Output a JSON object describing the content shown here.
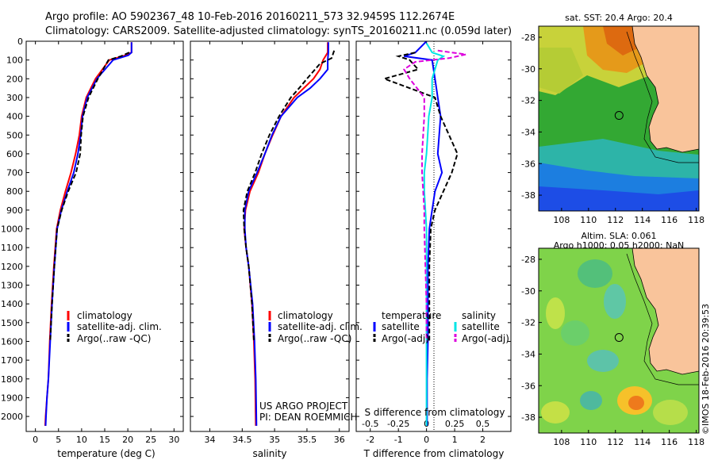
{
  "header": {
    "title_line1": "Argo profile: AO 5902367_48 10-Feb-2016 20160211_573 32.9459S 112.2674E",
    "title_line2": "Climatology: CARS2009. Satellite-adjusted climatology: synTS_20160211.nc (0.059d later)"
  },
  "colors": {
    "climatology": "#ff0000",
    "satellite": "#0000ff",
    "argo": "#000000",
    "sal_satellite": "#00e5e5",
    "sal_argo": "#dd00dd"
  },
  "chart_data": [
    {
      "type": "line",
      "name": "temperature-panel",
      "xlabel": "temperature (deg C)",
      "ylabel": "",
      "xlim": [
        -2,
        32
      ],
      "ylim": [
        2080,
        0
      ],
      "xticks": [
        0,
        5,
        10,
        15,
        20,
        25,
        30
      ],
      "yticks": [
        0,
        100,
        200,
        300,
        400,
        500,
        600,
        700,
        800,
        900,
        1000,
        1100,
        1200,
        1300,
        1400,
        1500,
        1600,
        1700,
        1800,
        1900,
        2000
      ],
      "legend": [
        "climatology",
        "satellite-adj. clim.",
        "Argo(..raw -QC)"
      ],
      "series": [
        {
          "name": "climatology",
          "dash": "solid",
          "points": [
            [
              20.8,
              5
            ],
            [
              20.8,
              60
            ],
            [
              19.5,
              75
            ],
            [
              16,
              100
            ],
            [
              13,
              200
            ],
            [
              11,
              300
            ],
            [
              10,
              400
            ],
            [
              9.5,
              500
            ],
            [
              8.7,
              600
            ],
            [
              7.7,
              700
            ],
            [
              6.5,
              800
            ],
            [
              5.4,
              900
            ],
            [
              4.6,
              1000
            ],
            [
              4.0,
              1200
            ],
            [
              3.5,
              1400
            ],
            [
              3.1,
              1600
            ],
            [
              2.8,
              1800
            ],
            [
              2.5,
              1900
            ],
            [
              2.2,
              2000
            ],
            [
              2.1,
              2050
            ]
          ]
        },
        {
          "name": "satellite-adj. clim.",
          "dash": "solid",
          "points": [
            [
              20.8,
              5
            ],
            [
              20.8,
              60
            ],
            [
              20.1,
              75
            ],
            [
              16.8,
              100
            ],
            [
              13.3,
              200
            ],
            [
              11.2,
              300
            ],
            [
              10.2,
              400
            ],
            [
              9.8,
              500
            ],
            [
              9.2,
              600
            ],
            [
              8.3,
              700
            ],
            [
              6.9,
              800
            ],
            [
              5.6,
              900
            ],
            [
              4.7,
              1000
            ],
            [
              4.1,
              1200
            ],
            [
              3.6,
              1400
            ],
            [
              3.2,
              1600
            ],
            [
              2.8,
              1800
            ],
            [
              2.5,
              1900
            ],
            [
              2.3,
              2000
            ],
            [
              2.2,
              2050
            ]
          ]
        },
        {
          "name": "Argo(..raw -QC)",
          "dash": "dash",
          "points": [
            [
              20.3,
              60
            ],
            [
              18.5,
              80
            ],
            [
              15.8,
              100
            ],
            [
              13.5,
              200
            ],
            [
              11.5,
              300
            ],
            [
              10.3,
              400
            ],
            [
              9.9,
              500
            ],
            [
              9.7,
              600
            ],
            [
              8.8,
              700
            ],
            [
              7.1,
              800
            ],
            [
              5.7,
              900
            ],
            [
              4.7,
              1000
            ],
            [
              4.1,
              1200
            ],
            [
              3.6,
              1400
            ],
            [
              3.2,
              1600
            ]
          ]
        }
      ]
    },
    {
      "type": "line",
      "name": "salinity-panel",
      "xlabel": "salinity",
      "xlim": [
        33.7,
        36.15
      ],
      "ylim": [
        2080,
        0
      ],
      "xticks": [
        34,
        34.5,
        35,
        35.5,
        36
      ],
      "xticklabels": [
        "34",
        "34.5",
        "35",
        "35.5",
        "36"
      ],
      "legend": [
        "climatology",
        "satellite-adj. clim.",
        "Argo(..raw -QC)"
      ],
      "annotations": [
        "US ARGO PROJECT",
        "PI: DEAN ROEMMICH"
      ],
      "series": [
        {
          "name": "climatology",
          "dash": "solid",
          "points": [
            [
              35.82,
              5
            ],
            [
              35.82,
              60
            ],
            [
              35.75,
              100
            ],
            [
              35.7,
              150
            ],
            [
              35.6,
              200
            ],
            [
              35.45,
              250
            ],
            [
              35.3,
              300
            ],
            [
              35.1,
              400
            ],
            [
              34.97,
              500
            ],
            [
              34.85,
              600
            ],
            [
              34.75,
              700
            ],
            [
              34.62,
              800
            ],
            [
              34.55,
              900
            ],
            [
              34.53,
              1000
            ],
            [
              34.56,
              1100
            ],
            [
              34.6,
              1200
            ],
            [
              34.65,
              1400
            ],
            [
              34.68,
              1600
            ],
            [
              34.7,
              1800
            ],
            [
              34.71,
              2050
            ]
          ]
        },
        {
          "name": "satellite-adj. clim.",
          "dash": "solid",
          "points": [
            [
              35.83,
              5
            ],
            [
              35.83,
              60
            ],
            [
              35.82,
              100
            ],
            [
              35.82,
              150
            ],
            [
              35.7,
              200
            ],
            [
              35.55,
              250
            ],
            [
              35.35,
              300
            ],
            [
              35.1,
              400
            ],
            [
              34.96,
              500
            ],
            [
              34.85,
              600
            ],
            [
              34.73,
              700
            ],
            [
              34.6,
              800
            ],
            [
              34.54,
              900
            ],
            [
              34.54,
              1000
            ],
            [
              34.56,
              1100
            ],
            [
              34.6,
              1200
            ],
            [
              34.66,
              1400
            ],
            [
              34.69,
              1600
            ],
            [
              34.71,
              1800
            ],
            [
              34.72,
              2050
            ]
          ]
        },
        {
          "name": "Argo(..raw -QC)",
          "dash": "dash",
          "points": [
            [
              35.92,
              50
            ],
            [
              35.9,
              70
            ],
            [
              35.88,
              90
            ],
            [
              35.7,
              120
            ],
            [
              35.5,
              200
            ],
            [
              35.38,
              250
            ],
            [
              35.25,
              300
            ],
            [
              35.07,
              400
            ],
            [
              34.92,
              500
            ],
            [
              34.8,
              600
            ],
            [
              34.7,
              700
            ],
            [
              34.58,
              800
            ],
            [
              34.52,
              900
            ],
            [
              34.53,
              1000
            ],
            [
              34.56,
              1100
            ],
            [
              34.6,
              1200
            ],
            [
              34.65,
              1400
            ],
            [
              34.68,
              1600
            ]
          ]
        }
      ]
    },
    {
      "type": "line",
      "name": "difference-panel",
      "xlabel": "T difference from climatology",
      "xlabel2": "S difference from climatology",
      "xlim": [
        -2.5,
        3.0
      ],
      "ylim": [
        2080,
        0
      ],
      "xticks": [
        -2,
        -1,
        0,
        1,
        2
      ],
      "xticklabels": [
        "-2",
        "-1",
        "0",
        "1",
        "2"
      ],
      "xticks2": [
        -0.5,
        -0.25,
        0,
        0.25,
        0.5
      ],
      "xticklabels2": [
        "-0.5",
        "-0.25",
        "0",
        "0.25",
        "0.5"
      ],
      "legend_title_t": "temperature",
      "legend_title_s": "salinity",
      "legend_t": [
        "satellite",
        "Argo(-adj)"
      ],
      "legend_s": [
        "satellite",
        "Argo(-adj)"
      ],
      "series": [
        {
          "name": "T satellite",
          "dash": "solid",
          "color": "#0000ff",
          "points": [
            [
              0,
              0
            ],
            [
              -0.4,
              60
            ],
            [
              -0.8,
              80
            ],
            [
              0.2,
              100
            ],
            [
              0.3,
              200
            ],
            [
              0.4,
              300
            ],
            [
              0.5,
              400
            ],
            [
              0.45,
              500
            ],
            [
              0.4,
              600
            ],
            [
              0.55,
              700
            ],
            [
              0.3,
              800
            ],
            [
              0.2,
              900
            ],
            [
              0.1,
              1000
            ],
            [
              0.05,
              1200
            ],
            [
              0.05,
              1400
            ],
            [
              0.05,
              1600
            ],
            [
              0.02,
              1800
            ],
            [
              0.02,
              2050
            ]
          ]
        },
        {
          "name": "T Argo(-adj)",
          "dash": "dash",
          "color": "#000000",
          "points": [
            [
              -0.4,
              60
            ],
            [
              -1.0,
              80
            ],
            [
              -0.6,
              100
            ],
            [
              -0.3,
              150
            ],
            [
              -1.5,
              200
            ],
            [
              0.3,
              300
            ],
            [
              0.5,
              400
            ],
            [
              1.1,
              600
            ],
            [
              0.9,
              700
            ],
            [
              0.6,
              800
            ],
            [
              0.3,
              900
            ],
            [
              0.15,
              1000
            ],
            [
              0.1,
              1200
            ],
            [
              0.1,
              1400
            ],
            [
              0.1,
              1600
            ]
          ]
        },
        {
          "name": "S satellite",
          "dash": "solid",
          "color": "#00e5e5",
          "points": [
            [
              0,
              10
            ],
            [
              0.05,
              60
            ],
            [
              0.15,
              80
            ],
            [
              0.1,
              100
            ],
            [
              0.05,
              200
            ],
            [
              0.05,
              300
            ],
            [
              0.02,
              400
            ],
            [
              0.01,
              500
            ],
            [
              0,
              600
            ],
            [
              -0.02,
              700
            ],
            [
              -0.02,
              800
            ],
            [
              -0.01,
              900
            ],
            [
              0,
              1000
            ],
            [
              0,
              1200
            ],
            [
              0,
              1400
            ],
            [
              0,
              1600
            ],
            [
              0,
              1800
            ],
            [
              0,
              2050
            ]
          ]
        },
        {
          "name": "S Argo(-adj)",
          "dash": "dash",
          "color": "#dd00dd",
          "points": [
            [
              0.1,
              50
            ],
            [
              0.35,
              70
            ],
            [
              0.2,
              90
            ],
            [
              -0.1,
              110
            ],
            [
              -0.2,
              150
            ],
            [
              -0.15,
              200
            ],
            [
              -0.02,
              300
            ],
            [
              -0.02,
              400
            ],
            [
              -0.03,
              500
            ],
            [
              -0.04,
              600
            ],
            [
              -0.04,
              700
            ],
            [
              -0.03,
              800
            ],
            [
              -0.02,
              900
            ],
            [
              -0.02,
              1000
            ],
            [
              -0.01,
              1200
            ],
            [
              0,
              1400
            ],
            [
              0,
              1600
            ]
          ]
        }
      ]
    },
    {
      "type": "heatmap",
      "name": "sst-map",
      "title": "sat. SST: 20.4  Argo: 20.4",
      "xlim": [
        106.3,
        118.2
      ],
      "ylim": [
        -39,
        -27.3
      ],
      "xticks": [
        108,
        110,
        112,
        114,
        116,
        118
      ],
      "yticks": [
        -28,
        -30,
        -32,
        -34,
        -36,
        -38
      ],
      "marker": [
        112.27,
        -32.95
      ]
    },
    {
      "type": "heatmap",
      "name": "sla-map",
      "title_line1": "Altim. SLA: 0.061",
      "title_line2": "Argo h1000: 0.05 h2000: NaN",
      "xlim": [
        106.3,
        118.2
      ],
      "ylim": [
        -39,
        -27.3
      ],
      "xticks": [
        108,
        110,
        112,
        114,
        116,
        118
      ],
      "yticks": [
        -28,
        -30,
        -32,
        -34,
        -36,
        -38
      ],
      "marker": [
        112.27,
        -32.95
      ]
    }
  ],
  "credit": "©IMOS 18-Feb-2016 20:39:53"
}
